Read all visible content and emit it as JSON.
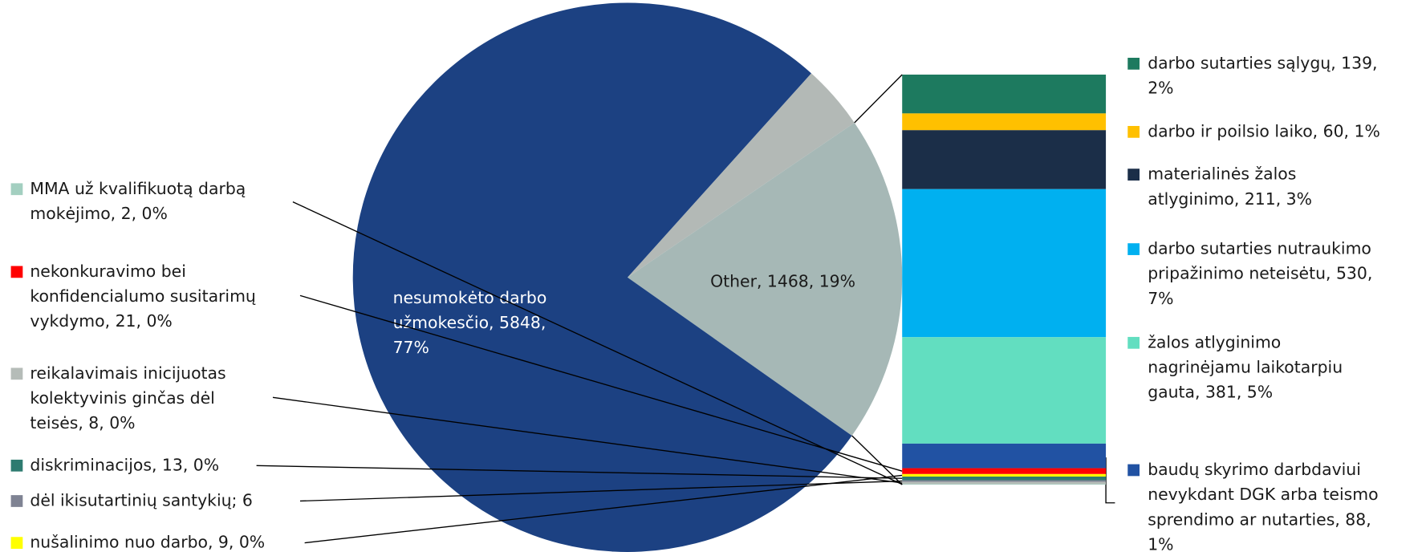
{
  "chart_data": {
    "type": "pie-of-bar",
    "pie": {
      "labels": [
        null,
        [
          "Other, 1468, 19%"
        ],
        [
          "nesumokėto darbo",
          "užmokesčio, 5848,",
          "77%"
        ]
      ],
      "values": [
        290,
        1468,
        5848
      ],
      "colors": [
        "#b3b9b6",
        "#a6b8b6",
        "#1c4182"
      ]
    },
    "bar": {
      "series": [
        {
          "name": [
            "darbo sutarties sąlygų, 139,",
            "2%"
          ],
          "value": 139,
          "color": "#1d7a5f"
        },
        {
          "name": [
            "darbo ir poilsio laiko, 60, 1%"
          ],
          "value": 60,
          "color": "#ffc000"
        },
        {
          "name": [
            "materialinės žalos",
            "atlyginimo, 211, 3%"
          ],
          "value": 211,
          "color": "#1b2e48"
        },
        {
          "name": [
            "darbo sutarties nutraukimo",
            "pripažinimo neteisėtu, 530,",
            "7%"
          ],
          "value": 530,
          "color": "#00b0f0"
        },
        {
          "name": [
            "žalos atlyginimo",
            "nagrinėjamu laikotarpiu",
            "gauta, 381, 5%"
          ],
          "value": 381,
          "color": "#62dec0"
        },
        {
          "name": [
            "baudų skyrimo darbdaviui",
            "nevykdant DGK arba teismo",
            "sprendimo ar nutarties, 88,",
            "1%"
          ],
          "value": 88,
          "color": "#2152a3"
        },
        {
          "name": [
            "nekonkuravimo bei",
            "konfidencialumo susitarimų",
            "vykdymo, 21, 0%"
          ],
          "value": 21,
          "color": "#ff0000"
        },
        {
          "name": [
            "nušalinimo nuo darbo, 9, 0%"
          ],
          "value": 9,
          "color": "#ffff00"
        },
        {
          "name": [
            "diskriminacijos, 13, 0%"
          ],
          "value": 13,
          "color": "#2e7b70"
        },
        {
          "name": [
            "dėl ikisutartinių santykių; 6"
          ],
          "value": 6,
          "color": "#7f8393"
        },
        {
          "name": [
            "reikalavimais inicijuotas",
            "kolektyvinis ginčas dėl",
            "teisės, 8, 0%"
          ],
          "value": 8,
          "color": "#b5bcb8"
        },
        {
          "name": [
            "MMA už kvalifikuotą darbą",
            "mokėjimo, 2, 0%"
          ],
          "value": 2,
          "color": "#a3cfc0"
        }
      ]
    }
  }
}
